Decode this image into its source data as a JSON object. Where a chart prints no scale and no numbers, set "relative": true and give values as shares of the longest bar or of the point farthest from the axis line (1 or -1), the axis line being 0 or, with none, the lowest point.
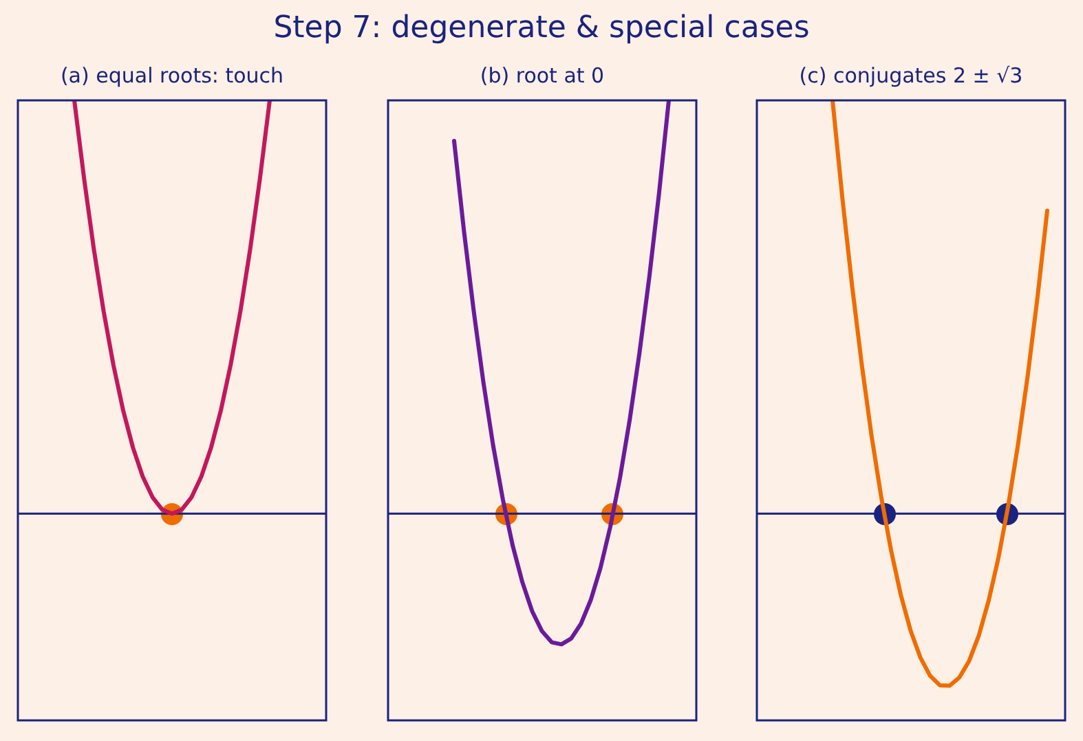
{
  "chart_data": [
    {
      "type": "line",
      "title": "(a) equal roots: touch",
      "annotations": [
        "Step 7: degenerate & special cases"
      ],
      "relative": true,
      "legend": false,
      "ref_lines": [
        {
          "axis": "y",
          "value": 0,
          "color": "#1a237e"
        }
      ],
      "categories": [
        null,
        null,
        null,
        null,
        null,
        null,
        null,
        null,
        null,
        null,
        null,
        null,
        null,
        null,
        null,
        null,
        null,
        null,
        null,
        null,
        null
      ],
      "series": [
        {
          "color": "#c2185b",
          "values": [
            1,
            0.811,
            0.64,
            0.49,
            0.36,
            0.25,
            0.16,
            0.09,
            0.04,
            0.01,
            0,
            0.01,
            0.04,
            0.09,
            0.16,
            0.25,
            0.36,
            0.49,
            0.64,
            0.811,
            1
          ]
        }
      ]
    },
    {
      "type": "line",
      "title": "(b) root at 0",
      "relative": true,
      "legend": false,
      "ref_lines": [
        {
          "axis": "y",
          "value": 0,
          "color": "#1a237e"
        }
      ],
      "categories": [
        null,
        null,
        null,
        null,
        null,
        null,
        null,
        null,
        null,
        null,
        null,
        null,
        null,
        null,
        null,
        null,
        null,
        null,
        null,
        null,
        null,
        null,
        null
      ],
      "series": [
        {
          "color": "#6a1b9a",
          "values": [
            0.902,
            0.686,
            0.492,
            0.318,
            0.165,
            0.034,
            -0.077,
            -0.166,
            -0.236,
            -0.284,
            -0.311,
            -0.316,
            -0.302,
            -0.266,
            -0.209,
            -0.131,
            -0.032,
            0.087,
            0.228,
            0.39,
            0.572,
            0.775,
            1
          ]
        }
      ]
    },
    {
      "type": "line",
      "title": "(c) conjugates 2 ± √3",
      "relative": true,
      "legend": false,
      "ref_lines": [
        {
          "axis": "y",
          "value": 0,
          "color": "#1a237e"
        }
      ],
      "categories": [
        null,
        null,
        null,
        null,
        null,
        null,
        null,
        null,
        null,
        null,
        null,
        null,
        null,
        null,
        null,
        null,
        null,
        null,
        null,
        null,
        null,
        null,
        null
      ],
      "series": [
        {
          "color": "#ef6c00",
          "values": [
            1,
            0.765,
            0.552,
            0.36,
            0.188,
            0.039,
            -0.089,
            -0.197,
            -0.283,
            -0.348,
            -0.392,
            -0.415,
            -0.416,
            -0.396,
            -0.356,
            -0.294,
            -0.21,
            -0.107,
            0.019,
            0.166,
            0.334,
            0.523,
            0.733
          ]
        }
      ]
    }
  ]
}
